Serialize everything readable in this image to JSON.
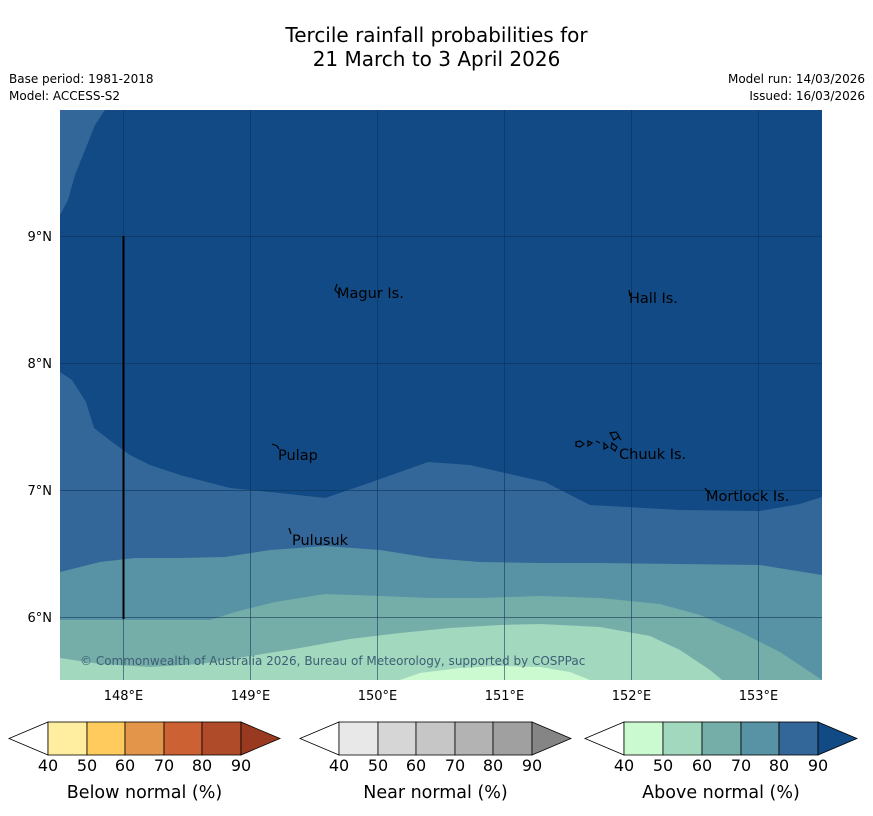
{
  "title": {
    "line1": "Tercile rainfall probabilities for",
    "line2": "21 March to 3 April 2026"
  },
  "meta_left": {
    "base_period": "Base period: 1981-2018",
    "model": "Model: ACCESS-S2"
  },
  "meta_right": {
    "model_run": "Model run: 14/03/2026",
    "issued": "Issued: 16/03/2026"
  },
  "axes": {
    "lat_labels": [
      "9°N",
      "8°N",
      "7°N",
      "6°N"
    ],
    "lon_labels": [
      "148°E",
      "149°E",
      "150°E",
      "151°E",
      "152°E",
      "153°E"
    ]
  },
  "places": [
    {
      "name": "Magur Is."
    },
    {
      "name": "Hall Is."
    },
    {
      "name": "Pulap"
    },
    {
      "name": "Chuuk Is."
    },
    {
      "name": "Mortlock Is."
    },
    {
      "name": "Pulusuk"
    }
  ],
  "copyright": "© Commonwealth of Australia 2026, Bureau of Meteorology, supported by COSPPac",
  "colorbars": [
    {
      "label": "Below normal (%)",
      "ticks": [
        "40",
        "50",
        "60",
        "70",
        "80",
        "90"
      ],
      "colors": [
        "#ffffff",
        "#ffeda0",
        "#fecb5c",
        "#e3954a",
        "#cc6234",
        "#b04b29",
        "#99391f"
      ]
    },
    {
      "label": "Near normal (%)",
      "ticks": [
        "40",
        "50",
        "60",
        "70",
        "80",
        "90"
      ],
      "colors": [
        "#ffffff",
        "#e8e8e8",
        "#d6d6d6",
        "#c6c6c6",
        "#b3b3b3",
        "#a0a0a0",
        "#858585"
      ]
    },
    {
      "label": "Above normal (%)",
      "ticks": [
        "40",
        "50",
        "60",
        "70",
        "80",
        "90"
      ],
      "colors": [
        "#ffffff",
        "#ccfad0",
        "#a2d8be",
        "#75aea8",
        "#5793a4",
        "#336799",
        "#114a84"
      ]
    }
  ]
}
